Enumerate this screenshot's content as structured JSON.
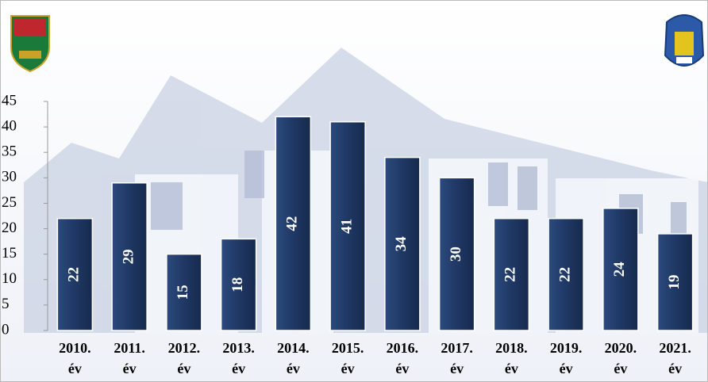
{
  "chart_data": {
    "type": "bar",
    "categories": [
      "2010. év",
      "2011. év",
      "2012. év",
      "2013. év",
      "2014. év",
      "2015. év",
      "2016. év",
      "2017. év",
      "2018. év",
      "2019. év",
      "2020. év",
      "2021. év"
    ],
    "values": [
      22,
      29,
      15,
      18,
      42,
      41,
      34,
      30,
      22,
      22,
      24,
      19
    ],
    "color": "#1f3864",
    "ylim": [
      0,
      45
    ],
    "yticks": [
      0,
      5,
      10,
      15,
      20,
      25,
      30,
      35,
      40,
      45
    ]
  }
}
